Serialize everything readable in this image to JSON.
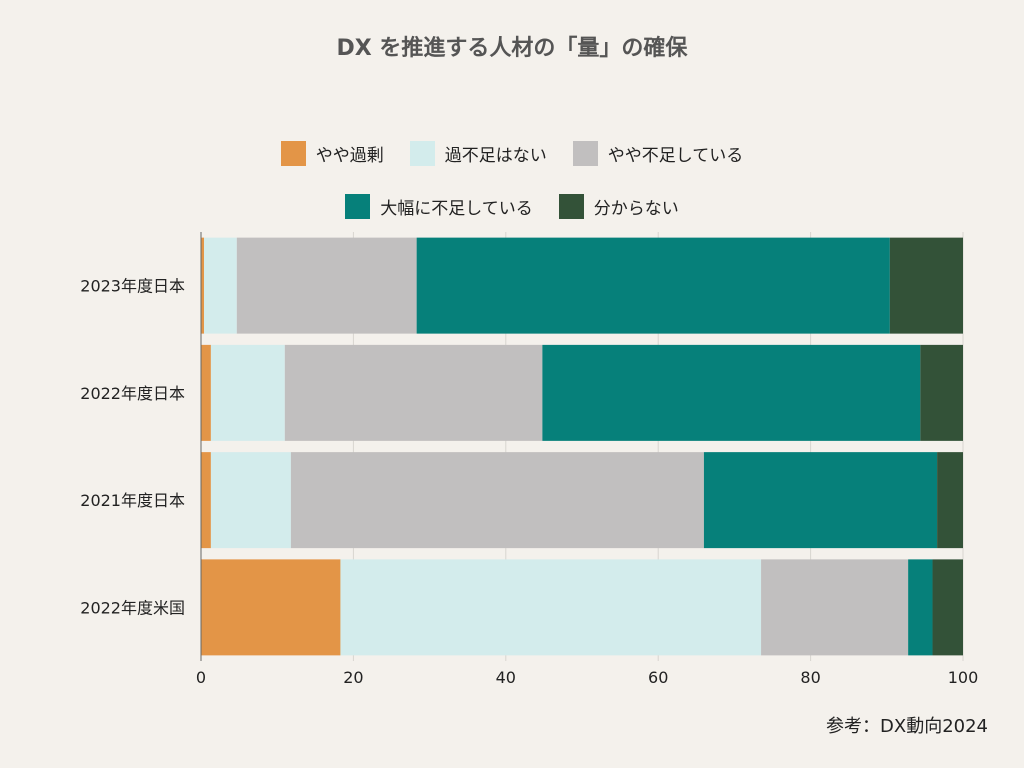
{
  "chart_data": {
    "type": "bar",
    "orientation": "horizontal",
    "stacked": true,
    "title": "DX を推進する人材の「量」の確保",
    "categories": [
      "2023年度日本",
      "2022年度日本",
      "2021年度日本",
      "2022年度米国"
    ],
    "series": [
      {
        "name": "やや過剰",
        "color": "#e39547",
        "values": [
          0.4,
          1.3,
          1.3,
          18.3
        ]
      },
      {
        "name": "過不足はない",
        "color": "#d3ecec",
        "values": [
          4.3,
          9.7,
          10.5,
          55.2
        ]
      },
      {
        "name": "やや不足している",
        "color": "#c1bfbf",
        "values": [
          23.6,
          33.8,
          54.2,
          19.3
        ]
      },
      {
        "name": "大幅に不足している",
        "color": "#06807a",
        "values": [
          62.1,
          49.6,
          30.6,
          3.2
        ]
      },
      {
        "name": "分からない",
        "color": "#335238",
        "values": [
          9.6,
          5.6,
          3.4,
          4.0
        ]
      }
    ],
    "xlim": [
      0,
      100
    ],
    "xticks": [
      0,
      20,
      40,
      60,
      80,
      100
    ],
    "xlabel": "",
    "ylabel": "",
    "grid": true
  },
  "source": "参考：DX動向2024"
}
